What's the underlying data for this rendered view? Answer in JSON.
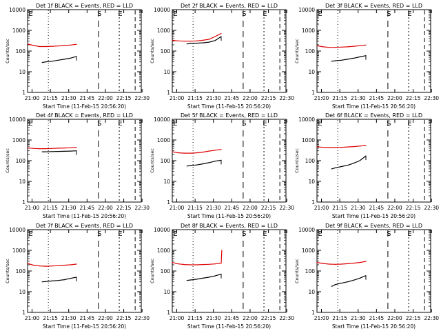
{
  "figure": {
    "xlabel": "Start Time (11-Feb-15 20:56:20)",
    "ylabel": "Counts/sec",
    "xticks": [
      "21:00",
      "21:15",
      "21:30",
      "21:45",
      "22:00",
      "22:15",
      "22:30"
    ],
    "yticks": [
      "1",
      "10",
      "100",
      "1000",
      "10000"
    ],
    "markers": [
      "E",
      "S",
      "E"
    ],
    "colors": {
      "events": "#000000",
      "lld": "#dd0000"
    }
  },
  "chart_data": [
    {
      "type": "line",
      "title": "Det 1f BLACK = Events, RED = LLD",
      "xlabel": "Start Time (11-Feb-15 20:56:20)",
      "ylabel": "Counts/sec",
      "x_range_min": [
        0,
        93
      ],
      "y_range": [
        1,
        10000
      ],
      "y_scale": "log",
      "marker_lines_min": [
        17,
        58,
        75,
        88
      ],
      "series": [
        {
          "color": "red",
          "x_min": [
            0,
            5,
            10,
            15,
            20,
            25,
            30,
            35,
            40
          ],
          "values": [
            220,
            185,
            165,
            165,
            170,
            175,
            185,
            195,
            210
          ]
        },
        {
          "color": "black",
          "x_min": [
            12,
            15,
            20,
            25,
            30,
            35,
            40
          ],
          "values": [
            28,
            30,
            32,
            36,
            40,
            45,
            55
          ]
        }
      ]
    },
    {
      "type": "line",
      "title": "Det 2f BLACK = Events, RED = LLD",
      "xlabel": "Start Time (11-Feb-15 20:56:20)",
      "ylabel": "Counts/sec",
      "x_range_min": [
        0,
        93
      ],
      "y_range": [
        1,
        10000
      ],
      "y_scale": "log",
      "marker_lines_min": [
        17,
        58,
        75,
        88
      ],
      "series": [
        {
          "color": "red",
          "x_min": [
            0,
            5,
            10,
            15,
            20,
            25,
            30,
            35,
            40
          ],
          "values": [
            330,
            310,
            300,
            300,
            310,
            330,
            370,
            500,
            700
          ]
        },
        {
          "color": "black",
          "x_min": [
            12,
            15,
            20,
            25,
            30,
            35,
            40
          ],
          "values": [
            220,
            230,
            240,
            250,
            270,
            320,
            500
          ]
        }
      ]
    },
    {
      "type": "line",
      "title": "Det 3f BLACK = Events, RED = LLD",
      "xlabel": "Start Time (11-Feb-15 20:56:20)",
      "ylabel": "Counts/sec",
      "x_range_min": [
        0,
        93
      ],
      "y_range": [
        1,
        10000
      ],
      "y_scale": "log",
      "marker_lines_min": [
        17,
        58,
        75,
        88
      ],
      "series": [
        {
          "color": "red",
          "x_min": [
            0,
            5,
            10,
            15,
            20,
            25,
            30,
            35,
            40
          ],
          "values": [
            180,
            160,
            150,
            150,
            155,
            160,
            170,
            180,
            195
          ]
        },
        {
          "color": "black",
          "x_min": [
            12,
            15,
            20,
            25,
            30,
            35,
            40
          ],
          "values": [
            32,
            34,
            36,
            40,
            45,
            52,
            60
          ]
        }
      ]
    },
    {
      "type": "line",
      "title": "Det 4f BLACK = Events, RED = LLD",
      "xlabel": "Start Time (11-Feb-15 20:56:20)",
      "ylabel": "Counts/sec",
      "x_range_min": [
        0,
        93
      ],
      "y_range": [
        1,
        10000
      ],
      "y_scale": "log",
      "marker_lines_min": [
        17,
        58,
        75,
        88
      ],
      "series": [
        {
          "color": "red",
          "x_min": [
            0,
            5,
            10,
            15,
            20,
            25,
            30,
            35,
            40
          ],
          "values": [
            420,
            390,
            380,
            380,
            390,
            400,
            410,
            420,
            440
          ]
        },
        {
          "color": "black",
          "x_min": [
            12,
            15,
            20,
            25,
            30,
            35,
            40
          ],
          "values": [
            270,
            270,
            275,
            280,
            285,
            290,
            300
          ]
        }
      ]
    },
    {
      "type": "line",
      "title": "Det 5f BLACK = Events, RED = LLD",
      "xlabel": "Start Time (11-Feb-15 20:56:20)",
      "ylabel": "Counts/sec",
      "x_range_min": [
        0,
        93
      ],
      "y_range": [
        1,
        10000
      ],
      "y_scale": "log",
      "marker_lines_min": [
        17,
        58,
        75,
        88
      ],
      "series": [
        {
          "color": "red",
          "x_min": [
            0,
            5,
            10,
            15,
            20,
            25,
            30,
            35,
            40
          ],
          "values": [
            270,
            240,
            230,
            230,
            240,
            260,
            290,
            320,
            350
          ]
        },
        {
          "color": "black",
          "x_min": [
            12,
            15,
            20,
            25,
            30,
            35,
            40
          ],
          "values": [
            55,
            58,
            62,
            70,
            80,
            95,
            105
          ]
        }
      ]
    },
    {
      "type": "line",
      "title": "Det 6f BLACK = Events, RED = LLD",
      "xlabel": "Start Time (11-Feb-15 20:56:20)",
      "ylabel": "Counts/sec",
      "x_range_min": [
        0,
        93
      ],
      "y_range": [
        1,
        10000
      ],
      "y_scale": "log",
      "marker_lines_min": [
        17,
        58,
        75,
        88
      ],
      "series": [
        {
          "color": "red",
          "x_min": [
            0,
            5,
            10,
            15,
            20,
            25,
            30,
            35,
            40
          ],
          "values": [
            470,
            440,
            430,
            430,
            440,
            460,
            480,
            510,
            540
          ]
        },
        {
          "color": "black",
          "x_min": [
            12,
            15,
            20,
            25,
            30,
            35,
            40
          ],
          "values": [
            40,
            45,
            52,
            60,
            75,
            100,
            170
          ]
        }
      ]
    },
    {
      "type": "line",
      "title": "Det 7f BLACK = Events, RED = LLD",
      "xlabel": "Start Time (11-Feb-15 20:56:20)",
      "ylabel": "Counts/sec",
      "x_range_min": [
        0,
        93
      ],
      "y_range": [
        1,
        10000
      ],
      "y_scale": "log",
      "marker_lines_min": [
        17,
        58,
        75,
        88
      ],
      "series": [
        {
          "color": "red",
          "x_min": [
            0,
            5,
            10,
            15,
            20,
            25,
            30,
            35,
            40
          ],
          "values": [
            230,
            190,
            175,
            170,
            175,
            180,
            190,
            200,
            215
          ]
        },
        {
          "color": "black",
          "x_min": [
            12,
            15,
            20,
            25,
            30,
            35,
            40
          ],
          "values": [
            30,
            31,
            33,
            35,
            38,
            44,
            50
          ]
        }
      ]
    },
    {
      "type": "line",
      "title": "Det 8f BLACK = Events, RED = LLD",
      "xlabel": "Start Time (11-Feb-15 20:56:20)",
      "ylabel": "Counts/sec",
      "x_range_min": [
        0,
        93
      ],
      "y_range": [
        1,
        10000
      ],
      "y_scale": "log",
      "marker_lines_min": [
        17,
        58,
        75,
        88
      ],
      "series": [
        {
          "color": "red",
          "x_min": [
            0,
            5,
            10,
            15,
            20,
            25,
            30,
            35,
            40,
            40.5
          ],
          "values": [
            260,
            220,
            205,
            200,
            200,
            205,
            210,
            220,
            240,
            1000
          ]
        },
        {
          "color": "black",
          "x_min": [
            12,
            15,
            20,
            25,
            30,
            35,
            40
          ],
          "values": [
            35,
            37,
            40,
            45,
            50,
            58,
            70
          ]
        }
      ]
    },
    {
      "type": "line",
      "title": "Det 9f BLACK = Events, RED = LLD",
      "xlabel": "Start Time (11-Feb-15 20:56:20)",
      "ylabel": "Counts/sec",
      "x_range_min": [
        0,
        93
      ],
      "y_range": [
        1,
        10000
      ],
      "y_scale": "log",
      "marker_lines_min": [
        17,
        58,
        75,
        88
      ],
      "series": [
        {
          "color": "red",
          "x_min": [
            0,
            5,
            10,
            15,
            20,
            25,
            30,
            35,
            40
          ],
          "values": [
            260,
            230,
            215,
            210,
            215,
            225,
            240,
            260,
            290
          ]
        },
        {
          "color": "black",
          "x_min": [
            12,
            15,
            20,
            25,
            30,
            35,
            40
          ],
          "values": [
            18,
            22,
            26,
            30,
            36,
            45,
            60
          ]
        }
      ]
    }
  ]
}
